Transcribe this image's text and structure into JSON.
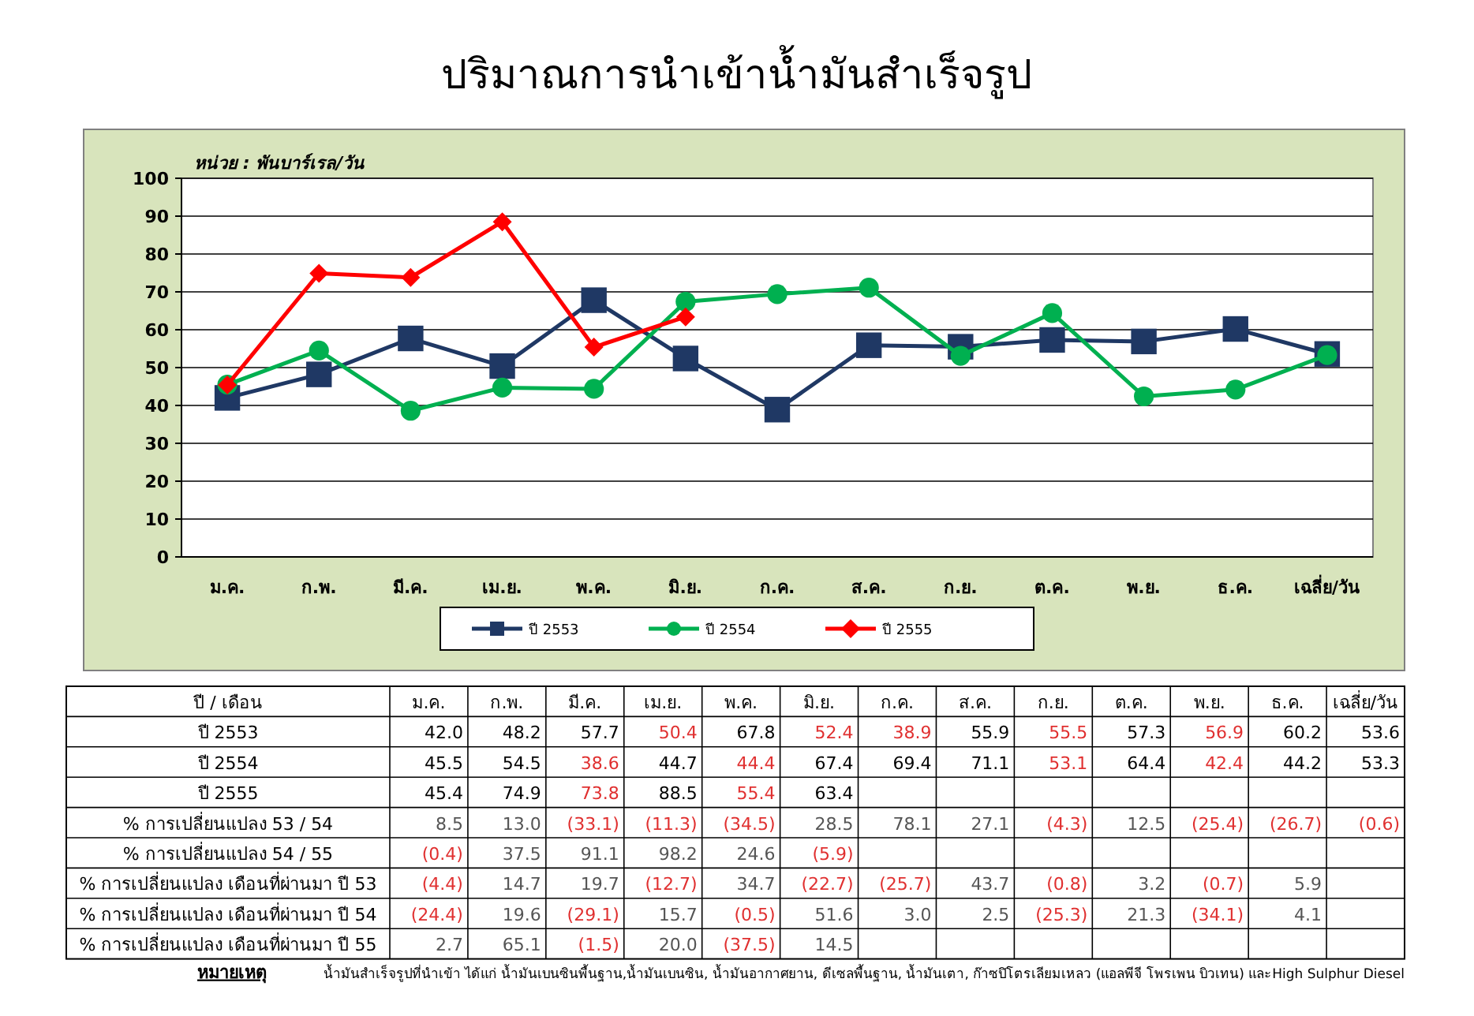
{
  "chart_data": [
    {
      "type": "line",
      "title": "ปริมาณการนำเข้าน้ำมันสำเร็จรูป",
      "ylabel": "หน่วย : พันบาร์เรล/วัน",
      "categories": [
        "ม.ค.",
        "ก.พ.",
        "มี.ค.",
        "เม.ย.",
        "พ.ค.",
        "มิ.ย.",
        "ก.ค.",
        "ส.ค.",
        "ก.ย.",
        "ต.ค.",
        "พ.ย.",
        "ธ.ค.",
        "เฉลี่ย/วัน"
      ],
      "series": [
        {
          "name": "ปี 2553",
          "color": "#1f3864",
          "marker": "square",
          "values": [
            42.0,
            48.2,
            57.7,
            50.4,
            67.8,
            52.4,
            38.9,
            55.9,
            55.5,
            57.3,
            56.9,
            60.2,
            53.6
          ]
        },
        {
          "name": "ปี 2554",
          "color": "#00b050",
          "marker": "circle",
          "values": [
            45.5,
            54.5,
            38.6,
            44.7,
            44.4,
            67.4,
            69.4,
            71.1,
            53.1,
            64.4,
            42.4,
            44.2,
            53.3
          ]
        },
        {
          "name": "ปี 2555",
          "color": "#ff0000",
          "marker": "diamond",
          "values": [
            45.4,
            74.9,
            73.8,
            88.5,
            55.4,
            63.4,
            null,
            null,
            null,
            null,
            null,
            null,
            null
          ]
        }
      ],
      "ylim": [
        0,
        100
      ],
      "yticks": [
        0,
        10,
        20,
        30,
        40,
        50,
        60,
        70,
        80,
        90,
        100
      ],
      "grid": "y",
      "legend": "bottom"
    },
    {
      "type": "heatmap",
      "ylabel": "ปี / เดือน",
      "categories": [
        "ม.ค.",
        "ก.พ.",
        "มี.ค.",
        "เม.ย.",
        "พ.ค.",
        "มิ.ย.",
        "ก.ค.",
        "ส.ค.",
        "ก.ย.",
        "ต.ค.",
        "พ.ย.",
        "ธ.ค.",
        "เฉลี่ย/วัน"
      ],
      "y_categories": [
        "ปี 2553",
        "ปี 2554",
        "ปี 2555",
        "% การเปลี่ยนแปลง 53 / 54",
        "% การเปลี่ยนแปลง 54 / 55",
        "% การเปลี่ยนแปลง เดือนที่ผ่านมา ปี 53",
        "% การเปลี่ยนแปลง เดือนที่ผ่านมา ปี 54",
        "% การเปลี่ยนแปลง เดือนที่ผ่านมา ปี 55"
      ],
      "cells": [
        [
          42.0,
          48.2,
          57.7,
          50.4,
          67.8,
          52.4,
          38.9,
          55.9,
          55.5,
          57.3,
          56.9,
          60.2,
          53.6
        ],
        [
          45.5,
          54.5,
          38.6,
          44.7,
          44.4,
          67.4,
          69.4,
          71.1,
          53.1,
          64.4,
          42.4,
          44.2,
          53.3
        ],
        [
          45.4,
          74.9,
          73.8,
          88.5,
          55.4,
          63.4,
          null,
          null,
          null,
          null,
          null,
          null,
          null
        ],
        [
          8.5,
          13.0,
          -33.1,
          -11.3,
          -34.5,
          28.5,
          78.1,
          27.1,
          -4.3,
          12.5,
          -25.4,
          -26.7,
          -0.6
        ],
        [
          -0.4,
          37.5,
          91.1,
          98.2,
          24.6,
          -5.9,
          null,
          null,
          null,
          null,
          null,
          null,
          null
        ],
        [
          -4.4,
          14.7,
          19.7,
          -12.7,
          34.7,
          -22.7,
          -25.7,
          43.7,
          -0.8,
          3.2,
          -0.7,
          5.9,
          null
        ],
        [
          -24.4,
          19.6,
          -29.1,
          15.7,
          -0.5,
          51.6,
          3.0,
          2.5,
          -25.3,
          21.3,
          -34.1,
          4.1,
          null
        ],
        [
          2.7,
          65.1,
          -1.5,
          20.0,
          -37.5,
          14.5,
          null,
          null,
          null,
          null,
          null,
          null,
          null
        ]
      ],
      "cell_labels": [
        [
          "42.0",
          "48.2",
          "57.7",
          "50.4",
          "67.8",
          "52.4",
          "38.9",
          "55.9",
          "55.5",
          "57.3",
          "56.9",
          "60.2",
          "53.6"
        ],
        [
          "45.5",
          "54.5",
          "38.6",
          "44.7",
          "44.4",
          "67.4",
          "69.4",
          "71.1",
          "53.1",
          "64.4",
          "42.4",
          "44.2",
          "53.3"
        ],
        [
          "45.4",
          "74.9",
          "73.8",
          "88.5",
          "55.4",
          "63.4",
          null,
          null,
          null,
          null,
          null,
          null,
          null
        ],
        [
          "8.5",
          "13.0",
          "(33.1)",
          "(11.3)",
          "(34.5)",
          "28.5",
          "78.1",
          "27.1",
          "(4.3)",
          "12.5",
          "(25.4)",
          "(26.7)",
          "(0.6)"
        ],
        [
          "(0.4)",
          "37.5",
          "91.1",
          "98.2",
          "24.6",
          "(5.9)",
          null,
          null,
          null,
          null,
          null,
          null,
          null
        ],
        [
          "(4.4)",
          "14.7",
          "19.7",
          "(12.7)",
          "34.7",
          "(22.7)",
          "(25.7)",
          "43.7",
          "(0.8)",
          "3.2",
          "(0.7)",
          "5.9",
          null
        ],
        [
          "(24.4)",
          "19.6",
          "(29.1)",
          "15.7",
          "(0.5)",
          "51.6",
          "3.0",
          "2.5",
          "(25.3)",
          "21.3",
          "(34.1)",
          "4.1",
          null
        ],
        [
          "2.7",
          "65.1",
          "(1.5)",
          "20.0",
          "(37.5)",
          "14.5",
          null,
          null,
          null,
          null,
          null,
          null,
          null
        ]
      ],
      "annotations": [
        "หมายเหตุ",
        "น้ำมันสำเร็จรูปที่นำเข้า ได้แก่ น้ำมันเบนซินพื้นฐาน,น้ำมันเบนซิน, น้ำมันอากาศยาน, ดีเซลพื้นฐาน, น้ำมันเตา, ก๊าซปิโตรเลียมเหลว (แอลพีจี โพรเพน บิวเทน) และHigh Sulphur Diesel"
      ]
    }
  ]
}
